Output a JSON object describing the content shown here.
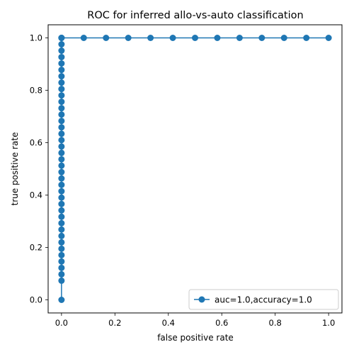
{
  "chart_data": {
    "type": "line",
    "title": "ROC for inferred allo-vs-auto classification",
    "xlabel": "false positive rate",
    "ylabel": "true positive rate",
    "xlim": [
      -0.05,
      1.05
    ],
    "ylim": [
      -0.05,
      1.05
    ],
    "xticks": [
      0.0,
      0.2,
      0.4,
      0.6,
      0.8,
      1.0
    ],
    "yticks": [
      0.0,
      0.2,
      0.4,
      0.6,
      0.8,
      1.0
    ],
    "xtick_labels": [
      "0.0",
      "0.2",
      "0.4",
      "0.6",
      "0.8",
      "1.0"
    ],
    "ytick_labels": [
      "0.0",
      "0.2",
      "0.4",
      "0.6",
      "0.8",
      "1.0"
    ],
    "grid": false,
    "legend_position": "lower-right",
    "series": [
      {
        "name": "auc=1.0,accuracy=1.0",
        "color": "#1f77b4",
        "marker": "circle",
        "x": [
          0,
          0,
          0,
          0,
          0,
          0,
          0,
          0,
          0,
          0,
          0,
          0,
          0,
          0,
          0,
          0,
          0,
          0,
          0,
          0,
          0,
          0,
          0,
          0,
          0,
          0,
          0,
          0,
          0,
          0,
          0,
          0,
          0,
          0,
          0,
          0,
          0,
          0,
          0,
          0,
          0,
          0,
          0.0833,
          0.1667,
          0.25,
          0.3333,
          0.4167,
          0.5,
          0.5833,
          0.6667,
          0.75,
          0.8333,
          0.9167,
          1.0
        ],
        "y": [
          0,
          0.0732,
          0.0976,
          0.122,
          0.1463,
          0.1707,
          0.1951,
          0.2195,
          0.2439,
          0.2683,
          0.2927,
          0.3171,
          0.3415,
          0.3659,
          0.3902,
          0.4146,
          0.439,
          0.4634,
          0.4878,
          0.5122,
          0.5366,
          0.561,
          0.5854,
          0.6098,
          0.6341,
          0.6585,
          0.6829,
          0.7073,
          0.7317,
          0.7561,
          0.7805,
          0.8049,
          0.8293,
          0.8537,
          0.878,
          0.9024,
          0.9268,
          0.9512,
          0.9756,
          1.0,
          1.0,
          1.0,
          1.0,
          1.0,
          1.0,
          1.0,
          1.0,
          1.0,
          1.0,
          1.0,
          1.0,
          1.0,
          1.0,
          1.0
        ]
      }
    ]
  }
}
